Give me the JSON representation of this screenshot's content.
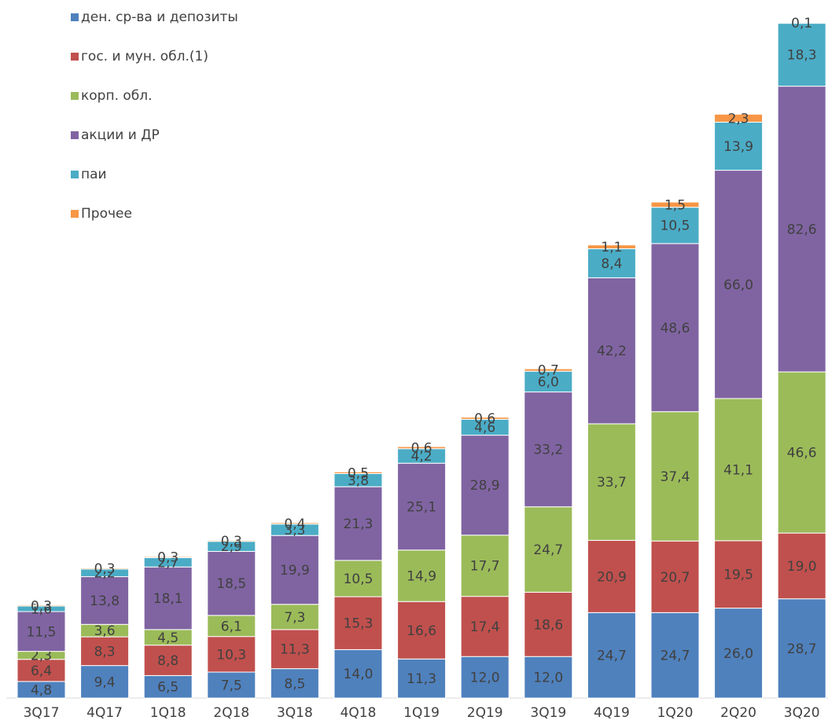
{
  "chart_data": {
    "type": "bar",
    "stacked": true,
    "categories": [
      "3Q17",
      "4Q17",
      "1Q18",
      "2Q18",
      "3Q18",
      "4Q18",
      "1Q19",
      "2Q19",
      "3Q19",
      "4Q19",
      "1Q20",
      "2Q20",
      "3Q20"
    ],
    "series": [
      {
        "name": "ден. ср-ва и депозиты",
        "color": "#4F81BD",
        "values": [
          4.8,
          9.4,
          6.5,
          7.5,
          8.5,
          14.0,
          11.3,
          12.0,
          12.0,
          24.7,
          24.7,
          26.0,
          28.7
        ],
        "labels": [
          "4,8",
          "9,4",
          "6,5",
          "7,5",
          "8,5",
          "14,0",
          "11,3",
          "12,0",
          "12,0",
          "24,7",
          "24,7",
          "26,0",
          "28,7"
        ]
      },
      {
        "name": "гос. и мун. обл.(1)",
        "color": "#C0504D",
        "values": [
          6.4,
          8.3,
          8.8,
          10.3,
          11.3,
          15.3,
          16.6,
          17.4,
          18.6,
          20.9,
          20.7,
          19.5,
          19.0
        ],
        "labels": [
          "6,4",
          "8,3",
          "8,8",
          "10,3",
          "11,3",
          "15,3",
          "16,6",
          "17,4",
          "18,6",
          "20,9",
          "20,7",
          "19,5",
          "19,0"
        ]
      },
      {
        "name": "корп. обл.",
        "color": "#9BBB59",
        "values": [
          2.3,
          3.6,
          4.5,
          6.1,
          7.3,
          10.5,
          14.9,
          17.7,
          24.7,
          33.7,
          37.4,
          41.1,
          46.6
        ],
        "labels": [
          "2,3",
          "3,6",
          "4,5",
          "6,1",
          "7,3",
          "10,5",
          "14,9",
          "17,7",
          "24,7",
          "33,7",
          "37,4",
          "41,1",
          "46,6"
        ]
      },
      {
        "name": "акции и ДР",
        "color": "#8064A2",
        "values": [
          11.5,
          13.8,
          18.1,
          18.5,
          19.9,
          21.3,
          25.1,
          28.9,
          33.2,
          42.2,
          48.6,
          66.0,
          82.6
        ],
        "labels": [
          "11,5",
          "13,8",
          "18,1",
          "18,5",
          "19,9",
          "21,3",
          "25,1",
          "28,9",
          "33,2",
          "42,2",
          "48,6",
          "66,0",
          "82,6"
        ]
      },
      {
        "name": "паи",
        "color": "#4BACC6",
        "values": [
          1.6,
          2.2,
          2.7,
          2.9,
          3.3,
          3.8,
          4.2,
          4.6,
          6.0,
          8.4,
          10.5,
          13.9,
          18.3
        ],
        "labels": [
          "1,6",
          "2,2",
          "2,7",
          "2,9",
          "3,3",
          "3,8",
          "4,2",
          "4,6",
          "6,0",
          "8,4",
          "10,5",
          "13,9",
          "18,3"
        ]
      },
      {
        "name": "Прочее",
        "color": "#F79646",
        "values": [
          0.3,
          0.3,
          0.3,
          0.3,
          0.4,
          0.5,
          0.6,
          0.6,
          0.7,
          1.1,
          1.5,
          2.3,
          0.1
        ],
        "labels": [
          "0,3",
          "0,3",
          "0,3",
          "0,3",
          "0,4",
          "0,5",
          "0,6",
          "0,6",
          "0,7",
          "1,1",
          "1,5",
          "2,3",
          "0,1"
        ]
      }
    ],
    "grid": false,
    "legend_position": "top-left",
    "label_color": "#404040",
    "axis_color": "#d9d9d9"
  }
}
